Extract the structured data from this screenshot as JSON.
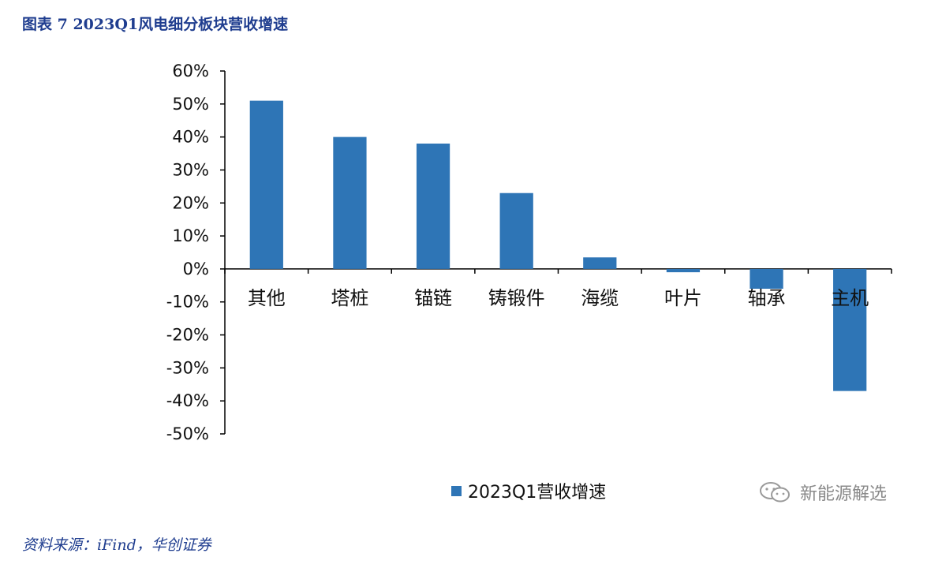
{
  "figure": {
    "title": "图表 7  2023Q1风电细分板块营收增速",
    "source": "资料来源：iFind，华创证券",
    "watermark": "新能源解选",
    "watermark_icon": "wechat-icon"
  },
  "colors": {
    "bar": "#2e75b6",
    "title": "#1f3d8f",
    "axis": "#000000"
  },
  "chart_data": {
    "type": "bar",
    "title": "",
    "xlabel": "",
    "ylabel": "",
    "categories": [
      "其他",
      "塔桩",
      "锚链",
      "铸锻件",
      "海缆",
      "叶片",
      "轴承",
      "主机"
    ],
    "series": [
      {
        "name": "2023Q1营收增速",
        "values": [
          0.51,
          0.4,
          0.38,
          0.23,
          0.035,
          -0.01,
          -0.06,
          -0.37
        ]
      }
    ],
    "ylim": [
      -0.5,
      0.6
    ],
    "yticks": [
      "60%",
      "50%",
      "40%",
      "30%",
      "20%",
      "10%",
      "0%",
      "-10%",
      "-20%",
      "-30%",
      "-40%",
      "-50%"
    ],
    "grid": false,
    "legend_position": "bottom"
  }
}
